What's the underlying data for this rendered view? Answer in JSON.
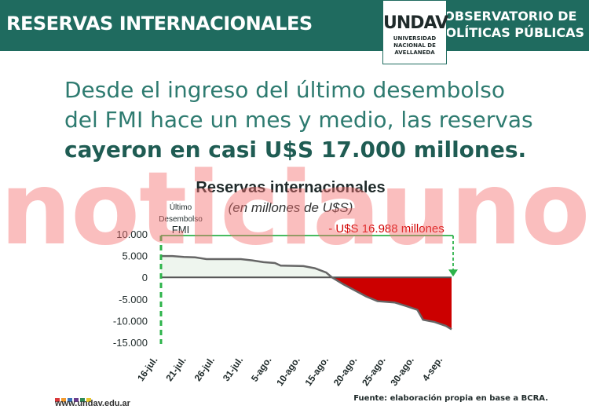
{
  "header": {
    "title": "RESERVAS INTERNACIONALES",
    "logo_mark": "UNDAV",
    "logo_lines": [
      "UNIVERSIDAD",
      "NACIONAL DE",
      "AVELLANEDA"
    ],
    "observatory_line1": "OBSERVATORIO DE",
    "observatory_line2": "POLÍTICAS PÚBLICAS",
    "color": "#1f6b5f"
  },
  "headline": {
    "line1": "Desde el ingreso del último desembolso",
    "line2": "del FMI hace un mes y medio, las reservas",
    "line3_bold": "cayeron en casi U$S 17.000 millones."
  },
  "watermark": "noticiauno",
  "footer": {
    "url": "www.undav.edu.ar",
    "source": "Fuente: elaboración propia en base a BCRA.",
    "dot_colors": [
      "#d9383a",
      "#f29a2e",
      "#3a73b8",
      "#6a3c8c",
      "#2e8b57",
      "#e7c62f"
    ]
  },
  "chart_data": {
    "type": "area",
    "title": "Reservas internacionales",
    "subtitle": "(en millones de U$S)",
    "annotation_left": [
      "Último",
      "Desembolso",
      "FMI"
    ],
    "annotation_drop": "- U$S 16.988 millones",
    "ylim": [
      -15000,
      10000
    ],
    "y_ticks": [
      "10.000",
      "5.000",
      "0",
      "-5.000",
      "-10.000",
      "-15.000"
    ],
    "y_tick_values": [
      10000,
      5000,
      0,
      -5000,
      -10000,
      -15000
    ],
    "x_tick_labels": [
      "16-jul.",
      "21-jul.",
      "26-jul.",
      "31-jul.",
      "5-ago.",
      "10-ago.",
      "15-ago.",
      "20-ago.",
      "25-ago.",
      "30-ago.",
      "4-sep."
    ],
    "x_days_start": "16-jul.",
    "series": [
      {
        "values": [
          {
            "d": 0,
            "v": 4900
          },
          {
            "d": 2,
            "v": 4900
          },
          {
            "d": 4,
            "v": 4700
          },
          {
            "d": 6,
            "v": 4600
          },
          {
            "d": 8,
            "v": 4200
          },
          {
            "d": 10,
            "v": 4200
          },
          {
            "d": 14,
            "v": 4200
          },
          {
            "d": 16,
            "v": 3900
          },
          {
            "d": 18,
            "v": 3500
          },
          {
            "d": 20,
            "v": 3300
          },
          {
            "d": 21,
            "v": 2700
          },
          {
            "d": 25,
            "v": 2600
          },
          {
            "d": 27,
            "v": 2100
          },
          {
            "d": 29,
            "v": 1100
          },
          {
            "d": 30,
            "v": 0
          },
          {
            "d": 32,
            "v": -1600
          },
          {
            "d": 34,
            "v": -3000
          },
          {
            "d": 36,
            "v": -4400
          },
          {
            "d": 38,
            "v": -5500
          },
          {
            "d": 41,
            "v": -5800
          },
          {
            "d": 43,
            "v": -6600
          },
          {
            "d": 45,
            "v": -7500
          },
          {
            "d": 46,
            "v": -9800
          },
          {
            "d": 48,
            "v": -10300
          },
          {
            "d": 50,
            "v": -11200
          },
          {
            "d": 51,
            "v": -12000
          }
        ]
      }
    ],
    "positive_fill": "#eef5ee",
    "negative_fill": "#cc0000",
    "annotation_color": "#2db34a",
    "drop_label_color": "#d10000"
  }
}
